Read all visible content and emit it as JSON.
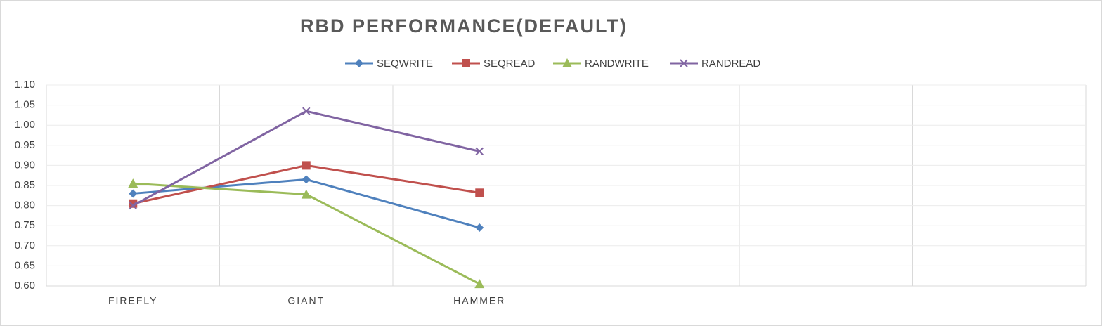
{
  "chart_data": {
    "type": "line",
    "title": "RBD PERFORMANCE(DEFAULT)",
    "categories": [
      "FIREFLY",
      "GIANT",
      "HAMMER",
      null,
      null,
      null
    ],
    "series": [
      {
        "name": "SEQWRITE",
        "color": "#4f81bd",
        "marker": "diamond",
        "values": [
          0.83,
          0.865,
          0.745,
          null,
          null,
          null
        ]
      },
      {
        "name": "SEQREAD",
        "color": "#c0504d",
        "marker": "square",
        "values": [
          0.805,
          0.9,
          0.832,
          null,
          null,
          null
        ]
      },
      {
        "name": "RANDWRITE",
        "color": "#9bbb59",
        "marker": "triangle",
        "values": [
          0.855,
          0.828,
          0.605,
          null,
          null,
          null
        ]
      },
      {
        "name": "RANDREAD",
        "color": "#8064a2",
        "marker": "x",
        "values": [
          0.8,
          1.035,
          0.935,
          null,
          null,
          null
        ]
      }
    ],
    "ylim": [
      0.6,
      1.1
    ],
    "yticks": [
      {
        "value": 0.6,
        "label": "0.60"
      },
      {
        "value": 0.65,
        "label": "0.65"
      },
      {
        "value": 0.7,
        "label": "0.70"
      },
      {
        "value": 0.75,
        "label": "0.75"
      },
      {
        "value": 0.8,
        "label": "0.80"
      },
      {
        "value": 0.85,
        "label": "0.85"
      },
      {
        "value": 0.9,
        "label": "0.90"
      },
      {
        "value": 0.95,
        "label": "0.95"
      },
      {
        "value": 1.0,
        "label": "1.00"
      },
      {
        "value": 1.05,
        "label": "1.05"
      },
      {
        "value": 1.1,
        "label": "1.10"
      }
    ],
    "grid": true,
    "legend": "top"
  }
}
